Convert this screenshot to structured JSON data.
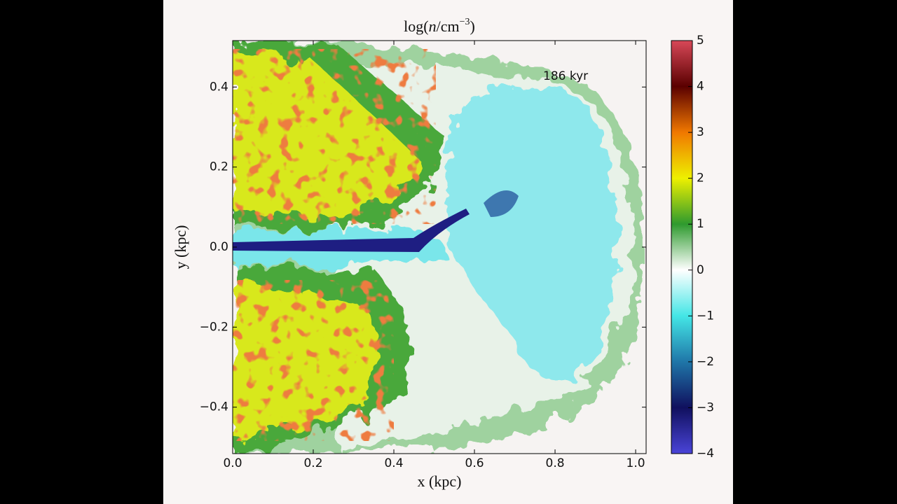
{
  "chart_data": {
    "type": "image",
    "title_parts": [
      "log(",
      "n",
      "/cm",
      "−3",
      ")"
    ],
    "xlabel": "x (kpc)",
    "ylabel": "y (kpc)",
    "annotation": "186 kyr",
    "xlim": [
      0,
      1.026
    ],
    "ylim": [
      -0.516,
      0.516
    ],
    "xticks": [
      {
        "value": 0,
        "label": "0.0"
      },
      0.2,
      0.4,
      0.6,
      0.8,
      {
        "value": 1,
        "label": "1.0"
      }
    ],
    "yticks": [
      0.4,
      0.2,
      {
        "value": 0,
        "label": "0.0"
      },
      {
        "value": -0.2,
        "label": "−0.2"
      },
      {
        "value": -0.4,
        "label": "−0.4"
      }
    ],
    "clim": [
      -4,
      5
    ],
    "cticks": [
      {
        "value": 5,
        "label": "5"
      },
      {
        "value": 4,
        "label": "4"
      },
      {
        "value": 3,
        "label": "3"
      },
      {
        "value": 2,
        "label": "2"
      },
      {
        "value": 1,
        "label": "1"
      },
      {
        "value": 0,
        "label": "0"
      },
      {
        "value": -1,
        "label": "−1"
      },
      {
        "value": -2,
        "label": "−2"
      },
      {
        "value": -3,
        "label": "−3"
      },
      {
        "value": -4,
        "label": "−4"
      }
    ],
    "colormap": [
      "#4a44d8",
      "#10105e",
      "#1f76a8",
      "#44e6e6",
      "#ffffff",
      "#2e9a2e",
      "#eef000",
      "#f07800",
      "#5a0000",
      "#d84858"
    ]
  }
}
